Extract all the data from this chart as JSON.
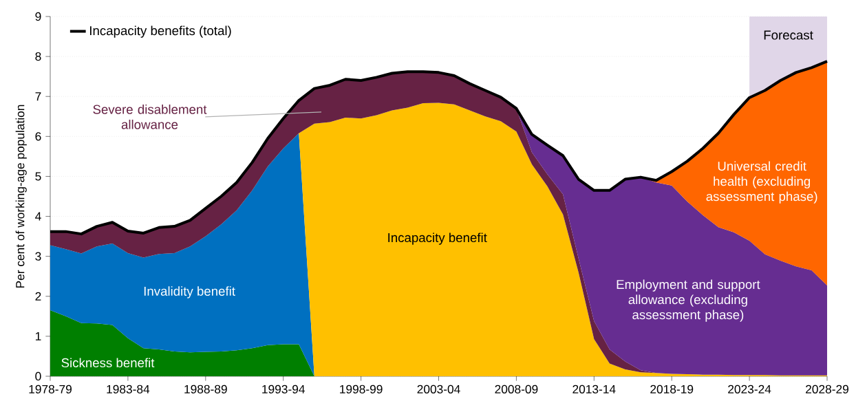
{
  "chart_data": {
    "type": "area",
    "stacked": true,
    "ylabel": "Per cent of working-age population",
    "categories": [
      "1978-79",
      null,
      null,
      null,
      null,
      "1983-84",
      null,
      null,
      null,
      null,
      "1988-89",
      null,
      null,
      null,
      null,
      "1993-94",
      null,
      null,
      null,
      null,
      "1998-99",
      null,
      null,
      null,
      null,
      "2003-04",
      null,
      null,
      null,
      null,
      "2008-09",
      null,
      null,
      null,
      null,
      "2013-14",
      null,
      null,
      null,
      null,
      "2018-19",
      null,
      null,
      null,
      null,
      "2023-24",
      null,
      null,
      null,
      null,
      "2028-29"
    ],
    "ylim": [
      0,
      9
    ],
    "yticks": [
      0,
      1,
      2,
      3,
      4,
      5,
      6,
      7,
      8,
      9
    ],
    "grid": "y",
    "legend": "top left",
    "series": [
      {
        "name": "Sickness benefit",
        "color": "#007f00",
        "values": [
          1.65,
          1.5,
          1.33,
          1.32,
          1.28,
          0.95,
          0.7,
          0.67,
          0.62,
          0.6,
          0.61,
          0.62,
          0.65,
          0.7,
          0.78,
          0.8,
          0.8,
          0,
          null,
          null,
          null,
          null,
          null,
          null,
          null,
          null,
          null,
          null,
          null,
          null,
          null,
          null,
          null,
          null,
          null,
          null,
          null,
          null,
          null,
          null,
          null,
          null,
          null,
          null,
          null,
          null,
          null,
          null,
          null,
          null,
          null
        ]
      },
      {
        "name": "Invalidity benefit",
        "color": "#0070c0",
        "values": [
          1.63,
          1.68,
          1.74,
          1.93,
          2.04,
          2.13,
          2.27,
          2.39,
          2.46,
          2.65,
          2.89,
          3.18,
          3.5,
          3.95,
          4.47,
          4.9,
          5.28,
          0,
          null,
          null,
          null,
          null,
          null,
          null,
          null,
          null,
          null,
          null,
          null,
          null,
          null,
          null,
          null,
          null,
          null,
          null,
          null,
          null,
          null,
          null,
          null,
          null,
          null,
          null,
          null,
          null,
          null,
          null,
          null,
          null,
          null
        ]
      },
      {
        "name": "Incapacity benefit",
        "color": "#ffc000",
        "values": [
          null,
          null,
          null,
          null,
          null,
          null,
          null,
          null,
          null,
          null,
          null,
          null,
          null,
          null,
          null,
          null,
          0,
          6.32,
          6.36,
          6.47,
          6.45,
          6.53,
          6.65,
          6.72,
          6.83,
          6.84,
          6.8,
          6.65,
          6.5,
          6.38,
          6.12,
          5.3,
          4.75,
          4.05,
          2.6,
          0.93,
          0.32,
          0.17,
          0.1,
          0.08,
          0.06,
          0.05,
          0.04,
          0.04,
          0.03,
          0.03,
          0.03,
          0.02,
          0.02,
          0.02,
          0.02
        ]
      },
      {
        "name": "Severe disablement allowance",
        "color": "#662244",
        "values": [
          0.34,
          0.44,
          0.49,
          0.5,
          0.53,
          0.55,
          0.61,
          0.66,
          0.67,
          0.65,
          0.7,
          0.7,
          0.7,
          0.7,
          0.7,
          0.75,
          0.82,
          0.88,
          0.92,
          0.96,
          0.95,
          0.95,
          0.93,
          0.9,
          0.79,
          0.76,
          0.72,
          0.67,
          0.65,
          0.6,
          0.58,
          0.3,
          0.3,
          0.5,
          0.35,
          0.45,
          0.35,
          0.2,
          0.05,
          0,
          null,
          null,
          null,
          null,
          null,
          null,
          null,
          null,
          null,
          null,
          null
        ]
      },
      {
        "name": "Employment and support allowance (excluding assessment phase)",
        "color": "#662d91",
        "values": [
          null,
          null,
          null,
          null,
          null,
          null,
          null,
          null,
          null,
          null,
          null,
          null,
          null,
          null,
          null,
          null,
          null,
          null,
          null,
          null,
          null,
          null,
          null,
          null,
          null,
          null,
          null,
          null,
          null,
          null,
          0,
          0.45,
          0.73,
          0.97,
          1.98,
          3.27,
          3.98,
          4.56,
          4.83,
          4.77,
          4.71,
          4.32,
          3.99,
          3.69,
          3.57,
          3.36,
          3.02,
          2.87,
          2.73,
          2.63,
          2.25
        ]
      },
      {
        "name": "Universal credit health (excluding assessment phase)",
        "color": "#ff6600",
        "values": [
          null,
          null,
          null,
          null,
          null,
          null,
          null,
          null,
          null,
          null,
          null,
          null,
          null,
          null,
          null,
          null,
          null,
          null,
          null,
          null,
          null,
          null,
          null,
          null,
          null,
          null,
          null,
          null,
          null,
          null,
          null,
          null,
          null,
          null,
          null,
          null,
          null,
          null,
          0,
          0.05,
          0.35,
          1.01,
          1.67,
          2.35,
          2.95,
          3.58,
          4.1,
          4.51,
          4.85,
          5.07,
          5.61
        ]
      },
      {
        "name": "Incapacity benefits (total)",
        "type": "line",
        "color": "#000000",
        "values": [
          3.62,
          3.62,
          3.56,
          3.75,
          3.85,
          3.63,
          3.58,
          3.72,
          3.75,
          3.9,
          4.2,
          4.5,
          4.85,
          5.35,
          5.95,
          6.45,
          6.9,
          7.2,
          7.28,
          7.43,
          7.4,
          7.48,
          7.58,
          7.62,
          7.62,
          7.6,
          7.52,
          7.32,
          7.15,
          6.98,
          6.7,
          6.05,
          5.78,
          5.52,
          4.93,
          4.65,
          4.65,
          4.93,
          4.98,
          4.9,
          5.12,
          5.38,
          5.7,
          6.08,
          6.55,
          6.97,
          7.15,
          7.4,
          7.6,
          7.72,
          7.88
        ]
      }
    ],
    "bands": [
      {
        "axis": "x",
        "from": "2023-24",
        "to": "2028-29",
        "label": "Forecast",
        "color": "#e0d6e8"
      }
    ]
  }
}
